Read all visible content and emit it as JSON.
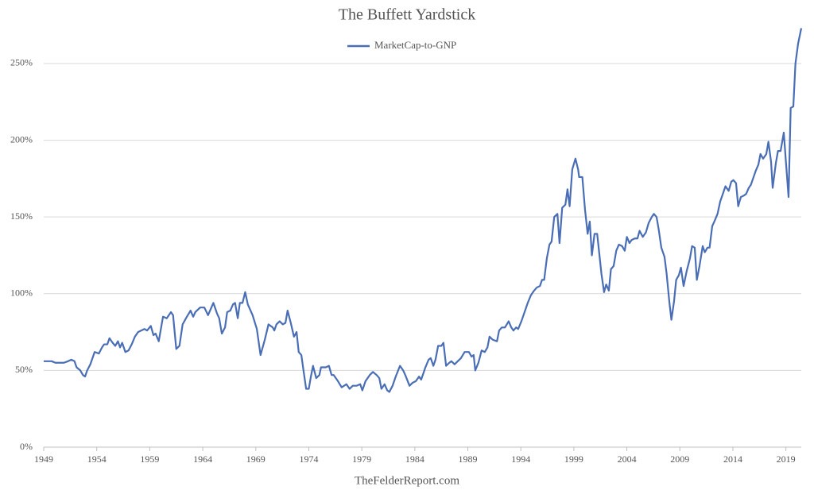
{
  "chart_data": {
    "type": "line",
    "title": "The Buffett Yardstick",
    "source": "TheFelderReport.com",
    "legend_position": "top",
    "grid": true,
    "xlim": [
      1949,
      2020.45
    ],
    "xticks": [
      1949,
      1954,
      1959,
      1964,
      1969,
      1974,
      1979,
      1984,
      1989,
      1994,
      1999,
      2004,
      2009,
      2014,
      2019
    ],
    "ylim": [
      0,
      280
    ],
    "yticks": [
      {
        "value": 0,
        "label": "0%"
      },
      {
        "value": 50,
        "label": "50%"
      },
      {
        "value": 100,
        "label": "100%"
      },
      {
        "value": 150,
        "label": "150%"
      },
      {
        "value": 200,
        "label": "200%"
      },
      {
        "value": 250,
        "label": "250%"
      }
    ],
    "x": [
      1949,
      1949.75,
      1950.1,
      1950.9,
      1951.3,
      1951.6,
      1951.9,
      1952.1,
      1952.45,
      1952.7,
      1952.9,
      1953.1,
      1953.4,
      1953.8,
      1954.2,
      1954.5,
      1954.7,
      1955,
      1955.2,
      1955.5,
      1955.75,
      1956,
      1956.2,
      1956.4,
      1956.7,
      1957,
      1957.3,
      1957.6,
      1957.9,
      1958.2,
      1958.5,
      1958.75,
      1959.1,
      1959.35,
      1959.55,
      1959.85,
      1960.25,
      1960.6,
      1961,
      1961.2,
      1961.5,
      1961.8,
      1962.1,
      1962.5,
      1962.85,
      1963.1,
      1963.3,
      1963.75,
      1964.15,
      1964.5,
      1965,
      1965.35,
      1965.55,
      1965.8,
      1966.1,
      1966.3,
      1966.6,
      1966.85,
      1967.05,
      1967.3,
      1967.5,
      1967.75,
      1968,
      1968.25,
      1968.7,
      1969.1,
      1969.45,
      1969.85,
      1970.2,
      1970.6,
      1970.75,
      1970.95,
      1971.25,
      1971.55,
      1971.8,
      1972,
      1972.3,
      1972.6,
      1972.85,
      1973.05,
      1973.3,
      1973.5,
      1973.75,
      1974,
      1974.2,
      1974.4,
      1974.7,
      1975,
      1975.15,
      1975.6,
      1975.9,
      1976.15,
      1976.35,
      1976.75,
      1977.1,
      1977.55,
      1977.85,
      1978.15,
      1978.5,
      1978.85,
      1979.05,
      1979.35,
      1979.75,
      1980.05,
      1980.4,
      1980.65,
      1980.85,
      1981.15,
      1981.4,
      1981.6,
      1981.9,
      1982.2,
      1982.6,
      1982.9,
      1983.1,
      1983.5,
      1983.8,
      1984.1,
      1984.4,
      1984.6,
      1985,
      1985.3,
      1985.5,
      1985.75,
      1985.95,
      1986.2,
      1986.5,
      1986.7,
      1986.95,
      1987.25,
      1987.45,
      1987.75,
      1988.05,
      1988.35,
      1988.7,
      1989.1,
      1989.35,
      1989.55,
      1989.7,
      1990,
      1990.3,
      1990.6,
      1990.85,
      1991.05,
      1991.35,
      1991.75,
      1991.95,
      1992.2,
      1992.5,
      1992.85,
      1993.1,
      1993.3,
      1993.55,
      1993.75,
      1994.05,
      1994.35,
      1994.65,
      1994.95,
      1995.25,
      1995.5,
      1995.8,
      1996,
      1996.2,
      1996.45,
      1996.7,
      1996.9,
      1997.15,
      1997.45,
      1997.65,
      1997.9,
      1998.2,
      1998.4,
      1998.6,
      1998.85,
      1999.15,
      1999.4,
      1999.5,
      1999.8,
      2000.05,
      2000.3,
      2000.5,
      2000.7,
      2000.95,
      2001.2,
      2001.4,
      2001.6,
      2001.85,
      2002.05,
      2002.3,
      2002.5,
      2002.75,
      2003,
      2003.25,
      2003.55,
      2003.8,
      2004,
      2004.25,
      2004.45,
      2004.75,
      2005,
      2005.2,
      2005.5,
      2005.8,
      2006.05,
      2006.35,
      2006.55,
      2006.8,
      2007,
      2007.25,
      2007.55,
      2007.75,
      2008,
      2008.2,
      2008.45,
      2008.65,
      2008.9,
      2009.1,
      2009.35,
      2009.65,
      2009.95,
      2010.15,
      2010.4,
      2010.6,
      2010.85,
      2011.15,
      2011.35,
      2011.6,
      2011.8,
      2012.05,
      2012.25,
      2012.55,
      2012.8,
      2013.1,
      2013.3,
      2013.6,
      2013.85,
      2014.05,
      2014.3,
      2014.5,
      2014.75,
      2015.05,
      2015.25,
      2015.5,
      2015.7,
      2015.95,
      2016.15,
      2016.4,
      2016.6,
      2016.85,
      2017.15,
      2017.35,
      2017.6,
      2017.75,
      2018.05,
      2018.25,
      2018.5,
      2018.8,
      2019,
      2019.25,
      2019.45,
      2019.7,
      2019.9,
      2020.15,
      2020.45
    ],
    "series": [
      {
        "name": "MarketCap-to-GNP",
        "color": "#4a6eb5",
        "values": [
          56,
          56,
          55,
          55,
          56,
          57,
          56,
          52,
          50,
          47,
          46,
          50,
          54,
          62,
          61,
          65,
          67,
          67,
          71,
          68,
          66,
          69,
          65,
          68,
          62,
          63,
          67,
          72,
          75,
          76,
          77,
          76,
          79,
          73,
          74,
          69,
          85,
          84,
          88,
          86,
          64,
          66,
          80,
          85,
          89,
          85,
          88,
          91,
          91,
          86,
          94,
          87,
          84,
          74,
          78,
          88,
          89,
          93,
          94,
          84,
          94,
          94,
          101,
          93,
          86,
          77,
          60,
          70,
          80,
          78,
          76,
          80,
          82,
          80,
          81,
          89,
          81,
          72,
          75,
          62,
          60,
          50,
          38,
          38,
          46,
          53,
          45,
          47,
          52,
          52,
          53,
          47,
          47,
          43,
          39,
          41,
          38,
          40,
          40,
          41,
          37,
          43,
          47,
          49,
          47,
          45,
          38,
          41,
          37,
          36,
          40,
          46,
          53,
          50,
          47,
          40,
          42,
          43,
          46,
          44,
          52,
          57,
          58,
          53,
          57,
          66,
          66,
          68,
          53,
          55,
          56,
          54,
          56,
          58,
          62,
          62,
          59,
          60,
          50,
          55,
          63,
          62,
          65,
          72,
          70,
          69,
          76,
          78,
          78,
          82,
          78,
          76,
          78,
          77,
          82,
          88,
          94,
          99,
          102,
          104,
          105,
          109,
          109,
          123,
          132,
          134,
          150,
          152,
          133,
          156,
          158,
          168,
          157,
          181,
          188,
          181,
          176,
          176,
          155,
          139,
          147,
          125,
          139,
          139,
          126,
          113,
          101,
          106,
          102,
          116,
          118,
          128,
          132,
          131,
          128,
          137,
          133,
          135,
          136,
          136,
          141,
          137,
          140,
          146,
          150,
          152,
          150,
          142,
          130,
          124,
          113,
          95,
          83,
          95,
          109,
          112,
          117,
          105,
          115,
          123,
          131,
          130,
          109,
          118,
          131,
          127,
          130,
          130,
          144,
          147,
          152,
          160,
          166,
          170,
          167,
          173,
          174,
          172,
          157,
          163,
          164,
          165,
          169,
          171,
          176,
          180,
          184,
          191,
          188,
          191,
          199,
          186,
          169,
          185,
          193,
          193,
          205,
          186,
          163,
          221,
          222,
          250,
          263,
          273
        ]
      }
    ]
  }
}
